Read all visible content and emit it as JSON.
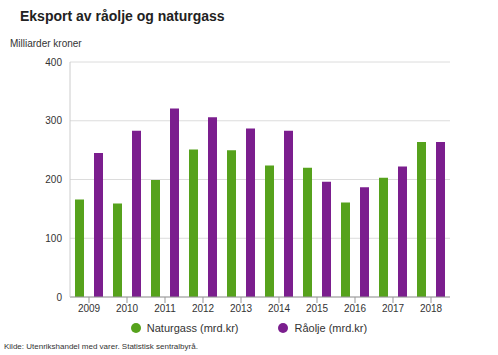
{
  "chart_data": {
    "type": "bar",
    "title": "Eksport av råolje og naturgass",
    "y_label": "Milliarder kroner",
    "source": "Kilde: Utenrikshandel med varer. Statistisk sentralbyrå.",
    "categories": [
      "2009",
      "2010",
      "2011",
      "2012",
      "2013",
      "2014",
      "2015",
      "2016",
      "2017",
      "2018"
    ],
    "series": [
      {
        "name": "Naturgass (mrd.kr)",
        "color": "#56a21c",
        "values": [
          166,
          159,
          199,
          251,
          250,
          224,
          220,
          161,
          203,
          264
        ]
      },
      {
        "name": "Råolje (mrd.kr)",
        "color": "#7b1e8e",
        "values": [
          245,
          283,
          321,
          306,
          287,
          283,
          196,
          187,
          222,
          264
        ]
      }
    ],
    "ylim": [
      0,
      400
    ],
    "yticks": [
      0,
      100,
      200,
      300,
      400
    ],
    "grid": true,
    "legend": "bottom"
  }
}
